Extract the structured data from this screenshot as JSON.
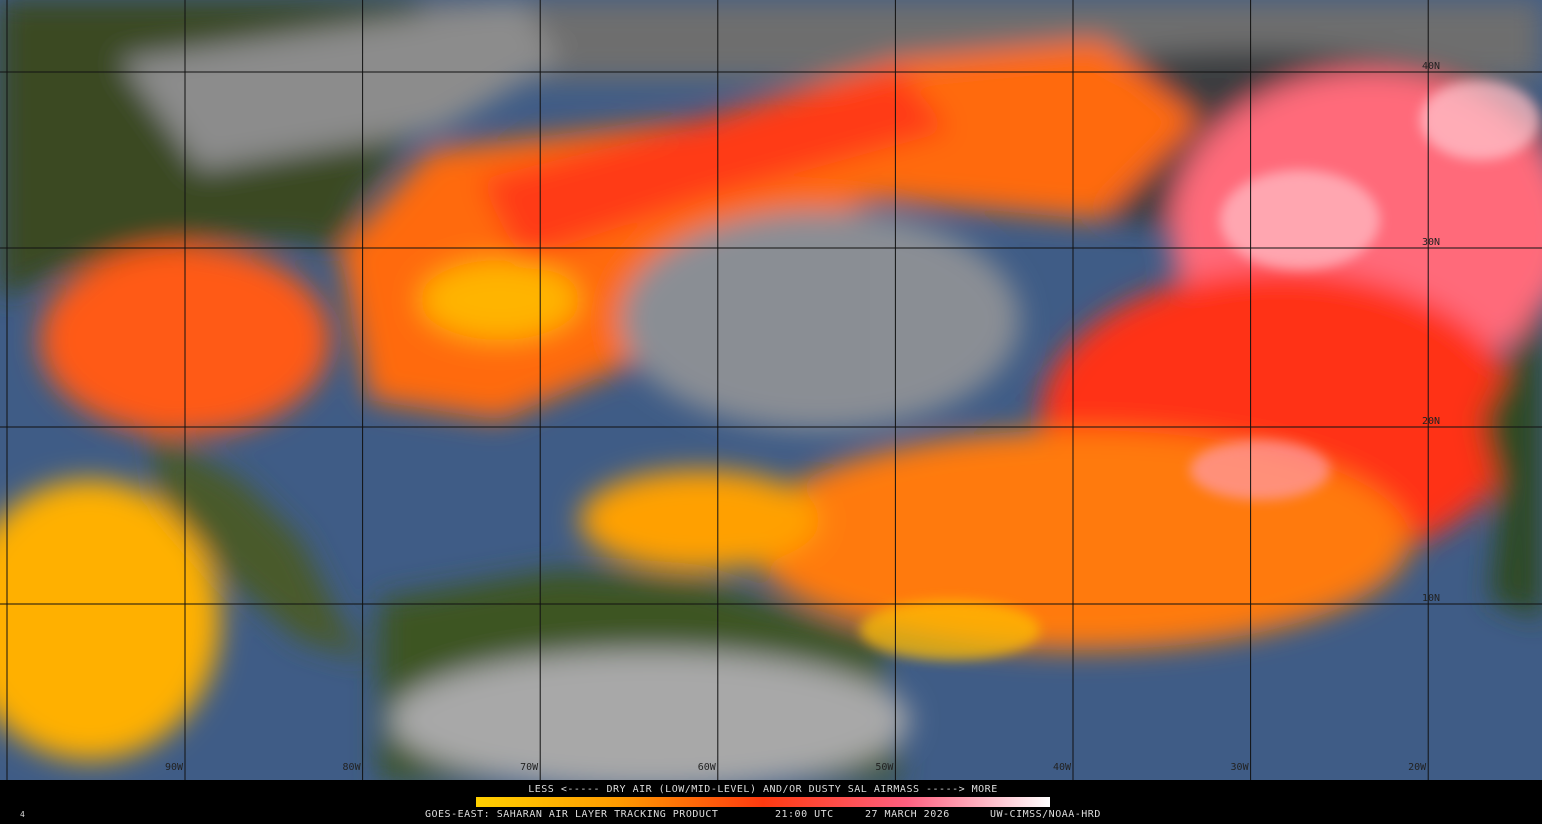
{
  "map": {
    "lat_labels": [
      "40N",
      "30N",
      "20N",
      "10N"
    ],
    "lon_labels": [
      "90W",
      "80W",
      "70W",
      "60W",
      "50W",
      "40W",
      "30W",
      "20W"
    ]
  },
  "legend": {
    "caption": "LESS <----- DRY AIR (LOW/MID-LEVEL) AND/OR DUSTY SAL AIRMASS -----> MORE"
  },
  "footer": {
    "product": "GOES-EAST: SAHARAN AIR LAYER TRACKING PRODUCT",
    "time": "21:00 UTC",
    "date": "27 MARCH 2026",
    "credit": "UW-CIMSS/NOAA-HRD",
    "frame": "4"
  }
}
